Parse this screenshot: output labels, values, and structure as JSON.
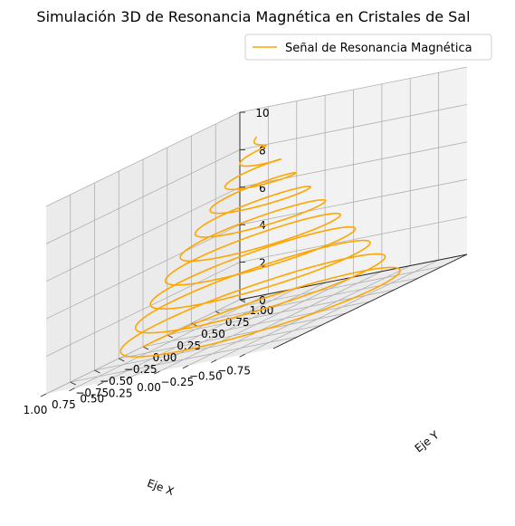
{
  "chart_data": {
    "type": "line",
    "projection": "3d",
    "title": "Simulación 3D de Resonancia Magnética en Cristales de Sal",
    "xlabel": "Eje X",
    "ylabel": "Eje Y",
    "zlabel": "",
    "xlim": [
      -1.0,
      1.0
    ],
    "ylim": [
      -1.0,
      1.0
    ],
    "zlim": [
      0,
      10
    ],
    "x_ticks": [
      "−0.75",
      "−0.50",
      "−0.25",
      "0.00",
      "0.25",
      "0.50",
      "0.75",
      "1.00"
    ],
    "y_ticks": [
      "−0.75",
      "−0.50",
      "−0.25",
      "0.00",
      "0.25",
      "0.50",
      "0.75",
      "1.00"
    ],
    "z_ticks": [
      "0",
      "2",
      "4",
      "6",
      "8",
      "10"
    ],
    "grid": true,
    "legend_position": "top-right",
    "series": [
      {
        "name": "Señal de Resonancia Magnética",
        "color": "#FFA500",
        "function": "x = cos(t)·(1 − t/(20π)), y = sin(t)·(1 − t/(20π)), z = t/(2π)",
        "t_range": [
          0,
          62.83
        ],
        "z_range": [
          0,
          10
        ],
        "turns": 10
      }
    ]
  },
  "colors": {
    "pane": "#f2f2f2",
    "pane_side": "#ebebeb",
    "grid": "#b0b0b0",
    "series": "#FFA500"
  }
}
